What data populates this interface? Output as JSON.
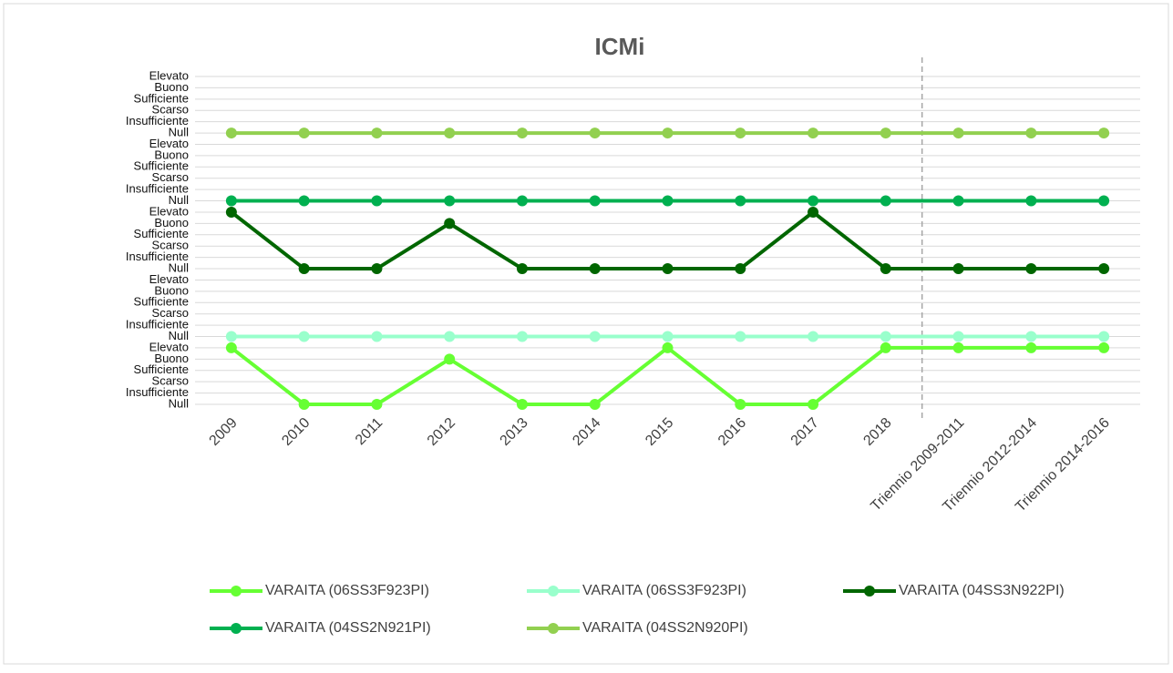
{
  "chart_data": {
    "type": "line",
    "title": "ICMi",
    "categories": [
      "2009",
      "2010",
      "2011",
      "2012",
      "2013",
      "2014",
      "2015",
      "2016",
      "2017",
      "2018",
      "Triennio 2009-2011",
      "Triennio 2012-2014",
      "Triennio 2014-2016"
    ],
    "ylim": [
      0,
      29
    ],
    "yticks": [
      {
        "value": 0,
        "label": "Null"
      },
      {
        "value": 1,
        "label": "Insufficiente"
      },
      {
        "value": 2,
        "label": "Scarso"
      },
      {
        "value": 3,
        "label": "Sufficiente"
      },
      {
        "value": 4,
        "label": "Buono"
      },
      {
        "value": 5,
        "label": "Elevato"
      },
      {
        "value": 6,
        "label": "Null"
      },
      {
        "value": 7,
        "label": "Insufficiente"
      },
      {
        "value": 8,
        "label": "Scarso"
      },
      {
        "value": 9,
        "label": "Sufficiente"
      },
      {
        "value": 10,
        "label": "Buono"
      },
      {
        "value": 11,
        "label": "Elevato"
      },
      {
        "value": 12,
        "label": "Null"
      },
      {
        "value": 13,
        "label": "Insufficiente"
      },
      {
        "value": 14,
        "label": "Scarso"
      },
      {
        "value": 15,
        "label": "Sufficiente"
      },
      {
        "value": 16,
        "label": "Buono"
      },
      {
        "value": 17,
        "label": "Elevato"
      },
      {
        "value": 18,
        "label": "Null"
      },
      {
        "value": 19,
        "label": "Insufficiente"
      },
      {
        "value": 20,
        "label": "Scarso"
      },
      {
        "value": 21,
        "label": "Sufficiente"
      },
      {
        "value": 22,
        "label": "Buono"
      },
      {
        "value": 23,
        "label": "Elevato"
      },
      {
        "value": 24,
        "label": "Null"
      },
      {
        "value": 25,
        "label": "Insufficiente"
      },
      {
        "value": 26,
        "label": "Scarso"
      },
      {
        "value": 27,
        "label": "Sufficiente"
      },
      {
        "value": 28,
        "label": "Buono"
      },
      {
        "value": 29,
        "label": "Elevato"
      }
    ],
    "grid": true,
    "legend": "bottom",
    "series": [
      {
        "name": "VARAITA (06SS3F923PI)",
        "color": "#66ff33",
        "values": [
          5,
          0,
          0,
          4,
          0,
          0,
          5,
          0,
          0,
          5,
          5,
          5,
          5
        ]
      },
      {
        "name": "VARAITA (06SS3F923PI)",
        "color": "#99ffcc",
        "values": [
          6,
          6,
          6,
          6,
          6,
          6,
          6,
          6,
          6,
          6,
          6,
          6,
          6
        ]
      },
      {
        "name": "VARAITA (04SS3N922PI)",
        "color": "#006600",
        "values": [
          17,
          12,
          12,
          16,
          12,
          12,
          12,
          12,
          17,
          12,
          12,
          12,
          12
        ]
      },
      {
        "name": "VARAITA (04SS2N921PI)",
        "color": "#00b050",
        "values": [
          18,
          18,
          18,
          18,
          18,
          18,
          18,
          18,
          18,
          18,
          18,
          18,
          18
        ]
      },
      {
        "name": "VARAITA (04SS2N920PI)",
        "color": "#92d050",
        "values": [
          24,
          24,
          24,
          24,
          24,
          24,
          24,
          24,
          24,
          24,
          24,
          24,
          24
        ]
      }
    ]
  }
}
